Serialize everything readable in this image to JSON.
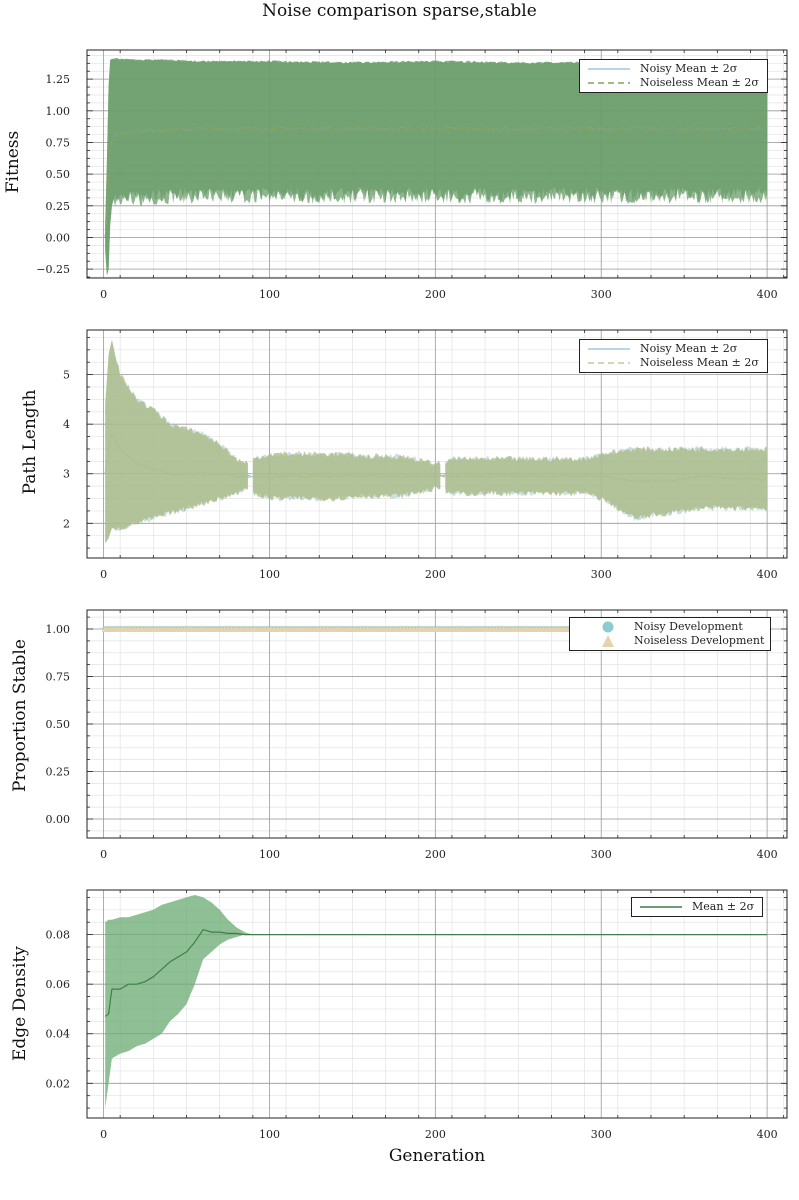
{
  "figure": {
    "title": "Noise comparison sparse,stable",
    "xlabel": "Generation"
  },
  "colors": {
    "noisy_line": "#9fc9e2",
    "noisy_band": "#9ec4cc",
    "noiseless_line": "#8a9f55",
    "fitness_band": "#6a9c69",
    "path_band": "#a9ba82",
    "stable_noisy_marker": "#8ecad0",
    "stable_noiseless_marker": "#e6d2ad",
    "edge_line": "#3f7f48",
    "edge_band": "#6aaa70"
  },
  "chart_data": [
    {
      "type": "area",
      "ylabel": "Fitness",
      "xlim": [
        -10,
        412
      ],
      "ylim": [
        -0.32,
        1.48
      ],
      "xticks": [
        0,
        100,
        200,
        300,
        400
      ],
      "yticks": [
        -0.25,
        0.0,
        0.25,
        0.5,
        0.75,
        1.0,
        1.25
      ],
      "ytick_labels": [
        "−0.25",
        "0.00",
        "0.25",
        "0.50",
        "0.75",
        "1.00",
        "1.25"
      ],
      "grid": true,
      "legend_position": "top-right",
      "series": [
        {
          "name": "Noisy Mean ± 2σ",
          "style": "solid",
          "x": [
            1,
            2,
            3,
            4,
            5,
            6,
            10,
            20,
            40,
            60,
            80,
            100,
            150,
            200,
            250,
            300,
            350,
            400
          ],
          "mean": [
            0.0,
            0.15,
            0.45,
            0.7,
            0.78,
            0.8,
            0.82,
            0.84,
            0.85,
            0.86,
            0.86,
            0.86,
            0.86,
            0.86,
            0.86,
            0.86,
            0.86,
            0.86
          ],
          "upper": [
            0.1,
            0.6,
            1.2,
            1.4,
            1.41,
            1.41,
            1.41,
            1.4,
            1.4,
            1.39,
            1.39,
            1.39,
            1.38,
            1.39,
            1.38,
            1.38,
            1.38,
            1.38
          ],
          "lower": [
            -0.1,
            -0.3,
            -0.25,
            0.1,
            0.25,
            0.3,
            0.3,
            0.3,
            0.33,
            0.33,
            0.33,
            0.33,
            0.33,
            0.33,
            0.33,
            0.33,
            0.33,
            0.33
          ]
        },
        {
          "name": "Noiseless Mean ± 2σ",
          "style": "dashed",
          "x": [
            1,
            2,
            3,
            4,
            5,
            6,
            10,
            20,
            40,
            60,
            80,
            100,
            150,
            200,
            250,
            300,
            350,
            400
          ],
          "mean": [
            0.0,
            0.15,
            0.45,
            0.7,
            0.78,
            0.8,
            0.82,
            0.84,
            0.85,
            0.86,
            0.86,
            0.86,
            0.86,
            0.86,
            0.86,
            0.86,
            0.86,
            0.86
          ],
          "upper": [
            0.1,
            0.6,
            1.2,
            1.4,
            1.41,
            1.41,
            1.41,
            1.4,
            1.4,
            1.39,
            1.39,
            1.39,
            1.38,
            1.39,
            1.38,
            1.38,
            1.38,
            1.38
          ],
          "lower": [
            -0.1,
            -0.3,
            -0.25,
            0.1,
            0.25,
            0.3,
            0.3,
            0.3,
            0.33,
            0.33,
            0.33,
            0.33,
            0.33,
            0.33,
            0.33,
            0.33,
            0.33,
            0.33
          ]
        }
      ]
    },
    {
      "type": "area",
      "ylabel": "Path Length",
      "xlim": [
        -10,
        412
      ],
      "ylim": [
        1.3,
        5.9
      ],
      "xticks": [
        0,
        100,
        200,
        300,
        400
      ],
      "yticks": [
        2,
        3,
        4,
        5
      ],
      "ytick_labels": [
        "2",
        "3",
        "4",
        "5"
      ],
      "grid": true,
      "legend_position": "top-right",
      "series": [
        {
          "name": "Noisy Mean ± 2σ",
          "style": "solid",
          "x": [
            1,
            3,
            5,
            10,
            20,
            30,
            40,
            50,
            60,
            70,
            80,
            85,
            90,
            100,
            120,
            140,
            160,
            180,
            200,
            210,
            230,
            250,
            270,
            290,
            300,
            320,
            340,
            360,
            380,
            400
          ],
          "mean": [
            3.0,
            3.5,
            3.8,
            3.5,
            3.2,
            3.1,
            3.0,
            3.0,
            3.0,
            3.0,
            2.95,
            2.95,
            2.95,
            2.95,
            2.95,
            2.95,
            2.95,
            2.95,
            2.95,
            2.95,
            2.95,
            2.95,
            2.95,
            2.95,
            2.95,
            2.85,
            2.85,
            2.95,
            2.9,
            2.9
          ],
          "upper": [
            4.4,
            5.4,
            5.7,
            5.0,
            4.5,
            4.3,
            4.0,
            3.9,
            3.8,
            3.6,
            3.3,
            3.2,
            3.3,
            3.4,
            3.4,
            3.4,
            3.35,
            3.35,
            3.2,
            3.3,
            3.3,
            3.3,
            3.3,
            3.3,
            3.4,
            3.5,
            3.5,
            3.5,
            3.5,
            3.5
          ],
          "lower": [
            1.6,
            1.7,
            1.9,
            1.9,
            2.0,
            2.1,
            2.2,
            2.3,
            2.4,
            2.5,
            2.6,
            2.7,
            2.6,
            2.5,
            2.5,
            2.5,
            2.55,
            2.55,
            2.7,
            2.6,
            2.6,
            2.6,
            2.6,
            2.6,
            2.5,
            2.1,
            2.2,
            2.3,
            2.3,
            2.3
          ]
        },
        {
          "name": "Noiseless Mean ± 2σ",
          "style": "dashed",
          "x": [
            1,
            3,
            5,
            10,
            20,
            30,
            40,
            50,
            60,
            70,
            80,
            85,
            90,
            100,
            120,
            140,
            160,
            180,
            200,
            210,
            230,
            250,
            270,
            290,
            300,
            320,
            340,
            360,
            380,
            400
          ],
          "mean": [
            3.0,
            3.5,
            3.8,
            3.5,
            3.2,
            3.1,
            3.0,
            3.0,
            3.0,
            3.0,
            2.95,
            2.95,
            2.95,
            2.95,
            2.95,
            2.95,
            2.95,
            2.95,
            2.95,
            2.95,
            2.95,
            2.95,
            2.95,
            2.95,
            2.95,
            2.85,
            2.85,
            2.95,
            2.9,
            2.9
          ],
          "upper": [
            4.4,
            5.4,
            5.7,
            5.0,
            4.5,
            4.3,
            4.0,
            3.9,
            3.8,
            3.6,
            3.3,
            3.2,
            3.3,
            3.4,
            3.4,
            3.4,
            3.35,
            3.35,
            3.2,
            3.3,
            3.3,
            3.3,
            3.3,
            3.3,
            3.4,
            3.5,
            3.5,
            3.5,
            3.5,
            3.5
          ],
          "lower": [
            1.6,
            1.7,
            1.9,
            1.9,
            2.0,
            2.1,
            2.2,
            2.3,
            2.4,
            2.5,
            2.6,
            2.7,
            2.6,
            2.5,
            2.5,
            2.5,
            2.55,
            2.55,
            2.7,
            2.6,
            2.6,
            2.6,
            2.6,
            2.6,
            2.5,
            2.1,
            2.2,
            2.3,
            2.3,
            2.3
          ]
        }
      ]
    },
    {
      "type": "scatter",
      "ylabel": "Proportion Stable",
      "xlim": [
        -10,
        412
      ],
      "ylim": [
        -0.1,
        1.1
      ],
      "xticks": [
        0,
        100,
        200,
        300,
        400
      ],
      "yticks": [
        0.0,
        0.25,
        0.5,
        0.75,
        1.0
      ],
      "ytick_labels": [
        "0.00",
        "0.25",
        "0.50",
        "0.75",
        "1.00"
      ],
      "grid": true,
      "legend_position": "top-right",
      "series": [
        {
          "name": "Noisy Development",
          "marker": "circle",
          "x_range": [
            1,
            400
          ],
          "y": 1.0
        },
        {
          "name": "Noiseless Development",
          "marker": "triangle",
          "x_range": [
            1,
            400
          ],
          "y": 1.0
        }
      ]
    },
    {
      "type": "area",
      "ylabel": "Edge Density",
      "xlim": [
        -10,
        412
      ],
      "ylim": [
        0.006,
        0.098
      ],
      "xticks": [
        0,
        100,
        200,
        300,
        400
      ],
      "yticks": [
        0.02,
        0.04,
        0.06,
        0.08
      ],
      "ytick_labels": [
        "0.02",
        "0.04",
        "0.06",
        "0.08"
      ],
      "grid": true,
      "legend_position": "top-right",
      "series": [
        {
          "name": "Mean ± 2σ",
          "style": "solid",
          "x": [
            1,
            3,
            5,
            10,
            15,
            20,
            25,
            30,
            35,
            40,
            45,
            50,
            55,
            60,
            65,
            70,
            75,
            80,
            85,
            90,
            100,
            200,
            300,
            400
          ],
          "mean": [
            0.047,
            0.048,
            0.058,
            0.058,
            0.06,
            0.06,
            0.061,
            0.063,
            0.066,
            0.069,
            0.071,
            0.073,
            0.077,
            0.082,
            0.081,
            0.081,
            0.0805,
            0.0805,
            0.08,
            0.08,
            0.08,
            0.08,
            0.08,
            0.08
          ],
          "upper": [
            0.085,
            0.086,
            0.086,
            0.087,
            0.087,
            0.088,
            0.089,
            0.09,
            0.092,
            0.093,
            0.094,
            0.095,
            0.096,
            0.095,
            0.093,
            0.09,
            0.086,
            0.083,
            0.081,
            0.08,
            0.08,
            0.08,
            0.08,
            0.08
          ],
          "lower": [
            0.01,
            0.02,
            0.03,
            0.032,
            0.033,
            0.035,
            0.036,
            0.038,
            0.04,
            0.045,
            0.048,
            0.052,
            0.06,
            0.07,
            0.073,
            0.076,
            0.078,
            0.079,
            0.08,
            0.08,
            0.08,
            0.08,
            0.08,
            0.08
          ]
        }
      ]
    }
  ]
}
